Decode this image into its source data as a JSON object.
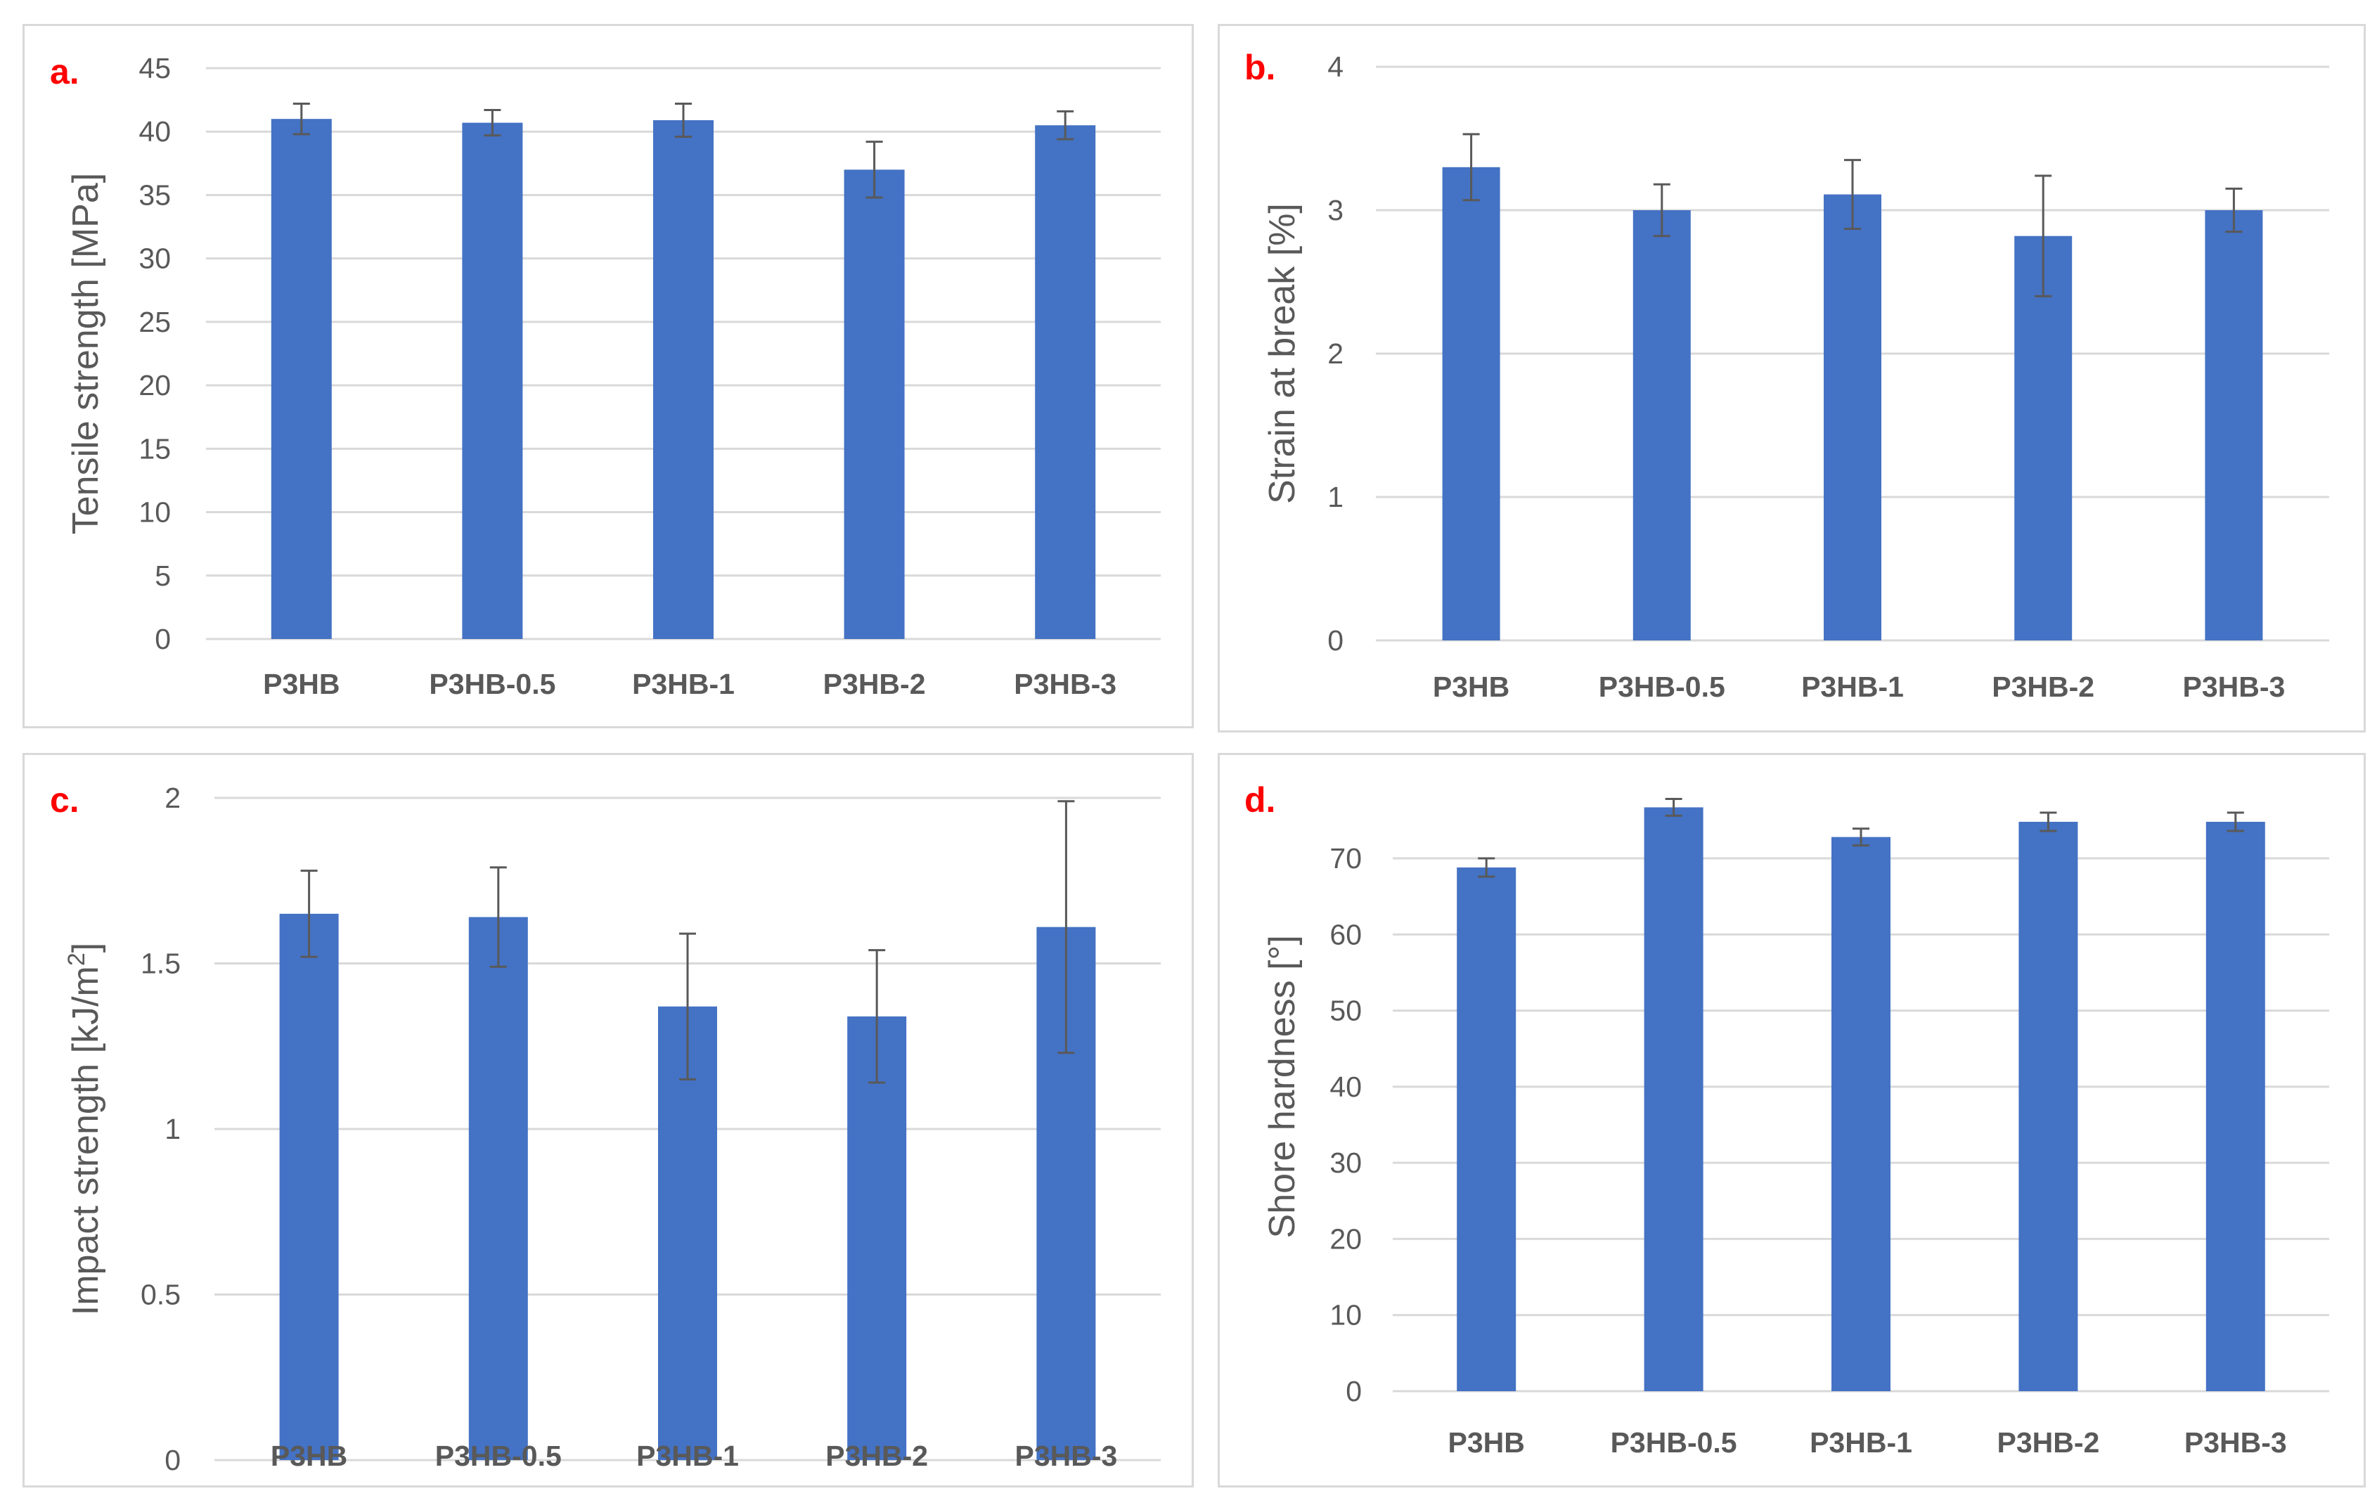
{
  "colors": {
    "bar": "#4472c4",
    "grid": "#d9d9d9",
    "text": "#595959",
    "panel_label": "#ff0000",
    "error_bar": "#595959"
  },
  "chart_data": [
    {
      "type": "bar",
      "panel_label": "a.",
      "categories": [
        "P3HB",
        "P3HB-0.5",
        "P3HB-1",
        "P3HB-2",
        "P3HB-3"
      ],
      "values": [
        41.0,
        40.7,
        40.9,
        37.0,
        40.5
      ],
      "errors": [
        1.2,
        1.0,
        1.3,
        2.2,
        1.1
      ],
      "ylabel": "Tensile strength [MPa]",
      "xlabel": "",
      "ylim": [
        0,
        45
      ],
      "yticks": [
        0,
        5,
        10,
        15,
        20,
        25,
        30,
        35,
        40,
        45
      ],
      "ytick_labels": [
        "0",
        "5",
        "10",
        "15",
        "20",
        "25",
        "30",
        "35",
        "40",
        "45"
      ],
      "grid": true
    },
    {
      "type": "bar",
      "panel_label": "b.",
      "categories": [
        "P3HB",
        "P3HB-0.5",
        "P3HB-1",
        "P3HB-2",
        "P3HB-3"
      ],
      "values": [
        3.3,
        3.0,
        3.11,
        2.82,
        3.0
      ],
      "errors": [
        0.23,
        0.18,
        0.24,
        0.42,
        0.15
      ],
      "ylabel": "Strain at break [%]",
      "xlabel": "",
      "ylim": [
        0,
        4
      ],
      "yticks": [
        0,
        1,
        2,
        3,
        4
      ],
      "ytick_labels": [
        "0",
        "1",
        "2",
        "3",
        "4"
      ],
      "grid": true
    },
    {
      "type": "bar",
      "panel_label": "c.",
      "categories": [
        "P3HB",
        "P3HB-0.5",
        "P3HB-1",
        "P3HB-2",
        "P3HB-3"
      ],
      "values": [
        1.65,
        1.64,
        1.37,
        1.34,
        1.61
      ],
      "errors": [
        0.13,
        0.15,
        0.22,
        0.2,
        0.38
      ],
      "ylabel": "Impact strength [kJ/m",
      "ylabel_sup": "2",
      "ylabel_end": "]",
      "xlabel": "",
      "ylim": [
        0,
        2
      ],
      "yticks": [
        0,
        0.5,
        1,
        1.5,
        2
      ],
      "ytick_labels": [
        "0",
        "0.5",
        "1",
        "1.5",
        "2"
      ],
      "grid": true
    },
    {
      "type": "bar",
      "panel_label": "d.",
      "categories": [
        "P3HB",
        "P3HB-0.5",
        "P3HB-1",
        "P3HB-2",
        "P3HB-3"
      ],
      "values": [
        68.8,
        76.7,
        72.8,
        74.8,
        74.8
      ],
      "errors": [
        1.2,
        1.1,
        1.1,
        1.2,
        1.2
      ],
      "ylabel": "Shore hardness [°]",
      "xlabel": "",
      "ylim": [
        0,
        80
      ],
      "yticks": [
        0,
        10,
        20,
        30,
        40,
        50,
        60,
        70
      ],
      "ytick_labels": [
        "0",
        "10",
        "20",
        "30",
        "40",
        "50",
        "60",
        "70"
      ],
      "grid": true
    }
  ]
}
